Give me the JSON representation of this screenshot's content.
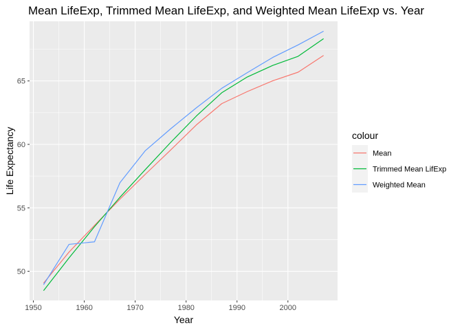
{
  "chart_data": {
    "type": "line",
    "title": "Mean LifeExp, Trimmed Mean LifeExp, and Weighted Mean LifeExp vs. Year",
    "xlabel": "Year",
    "ylabel": "Life Expectancy",
    "xlim": [
      1949.25,
      2009.75
    ],
    "ylim": [
      47.7,
      69.7
    ],
    "xticks": [
      1950,
      1960,
      1970,
      1980,
      1990,
      2000
    ],
    "yticks": [
      50,
      55,
      60,
      65
    ],
    "grid": true,
    "legend": {
      "title": "colour",
      "position": "right"
    },
    "x": [
      1952,
      1957,
      1962,
      1967,
      1972,
      1977,
      1982,
      1987,
      1992,
      1997,
      2002,
      2007
    ],
    "series": [
      {
        "name": "Mean",
        "color": "#F8766D",
        "values": [
          49.06,
          51.51,
          53.61,
          55.68,
          57.65,
          59.57,
          61.53,
          63.21,
          64.16,
          65.01,
          65.69,
          67.01
        ]
      },
      {
        "name": "Trimmed Mean LifExp",
        "color": "#00BA38",
        "values": [
          48.47,
          51.05,
          53.51,
          55.83,
          58.02,
          60.17,
          62.23,
          64.07,
          65.31,
          66.22,
          66.94,
          68.33
        ]
      },
      {
        "name": "Weighted Mean",
        "color": "#619CFF",
        "values": [
          48.94,
          52.12,
          52.32,
          56.98,
          59.51,
          61.24,
          62.88,
          64.42,
          65.65,
          66.85,
          67.84,
          68.92
        ]
      }
    ]
  }
}
